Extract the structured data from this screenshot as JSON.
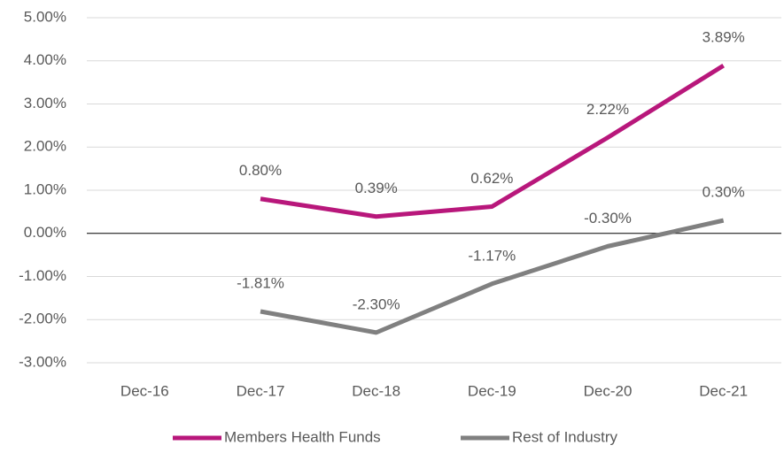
{
  "chart_data": {
    "type": "line",
    "categories": [
      "Dec-16",
      "Dec-17",
      "Dec-18",
      "Dec-19",
      "Dec-20",
      "Dec-21"
    ],
    "series": [
      {
        "name": "Members Health Funds",
        "color": "#b8177b",
        "values": [
          null,
          0.8,
          0.39,
          0.62,
          2.22,
          3.89
        ],
        "value_labels": [
          null,
          "0.80%",
          "0.39%",
          "0.62%",
          "2.22%",
          "3.89%"
        ]
      },
      {
        "name": "Rest of Industry",
        "color": "#808080",
        "values": [
          null,
          -1.81,
          -2.3,
          -1.17,
          -0.3,
          0.3
        ],
        "value_labels": [
          null,
          "-1.81%",
          "-2.30%",
          "-1.17%",
          "-0.30%",
          "0.30%"
        ]
      }
    ],
    "ylim": [
      -3,
      5
    ],
    "yticks": [
      {
        "value": -3,
        "label": "-3.00%"
      },
      {
        "value": -2,
        "label": "-2.00%"
      },
      {
        "value": -1,
        "label": "-1.00%"
      },
      {
        "value": 0,
        "label": "0.00%"
      },
      {
        "value": 1,
        "label": "1.00%"
      },
      {
        "value": 2,
        "label": "2.00%"
      },
      {
        "value": 3,
        "label": "3.00%"
      },
      {
        "value": 4,
        "label": "4.00%"
      },
      {
        "value": 5,
        "label": "5.00%"
      }
    ],
    "grid": true,
    "legend": "bottom"
  }
}
